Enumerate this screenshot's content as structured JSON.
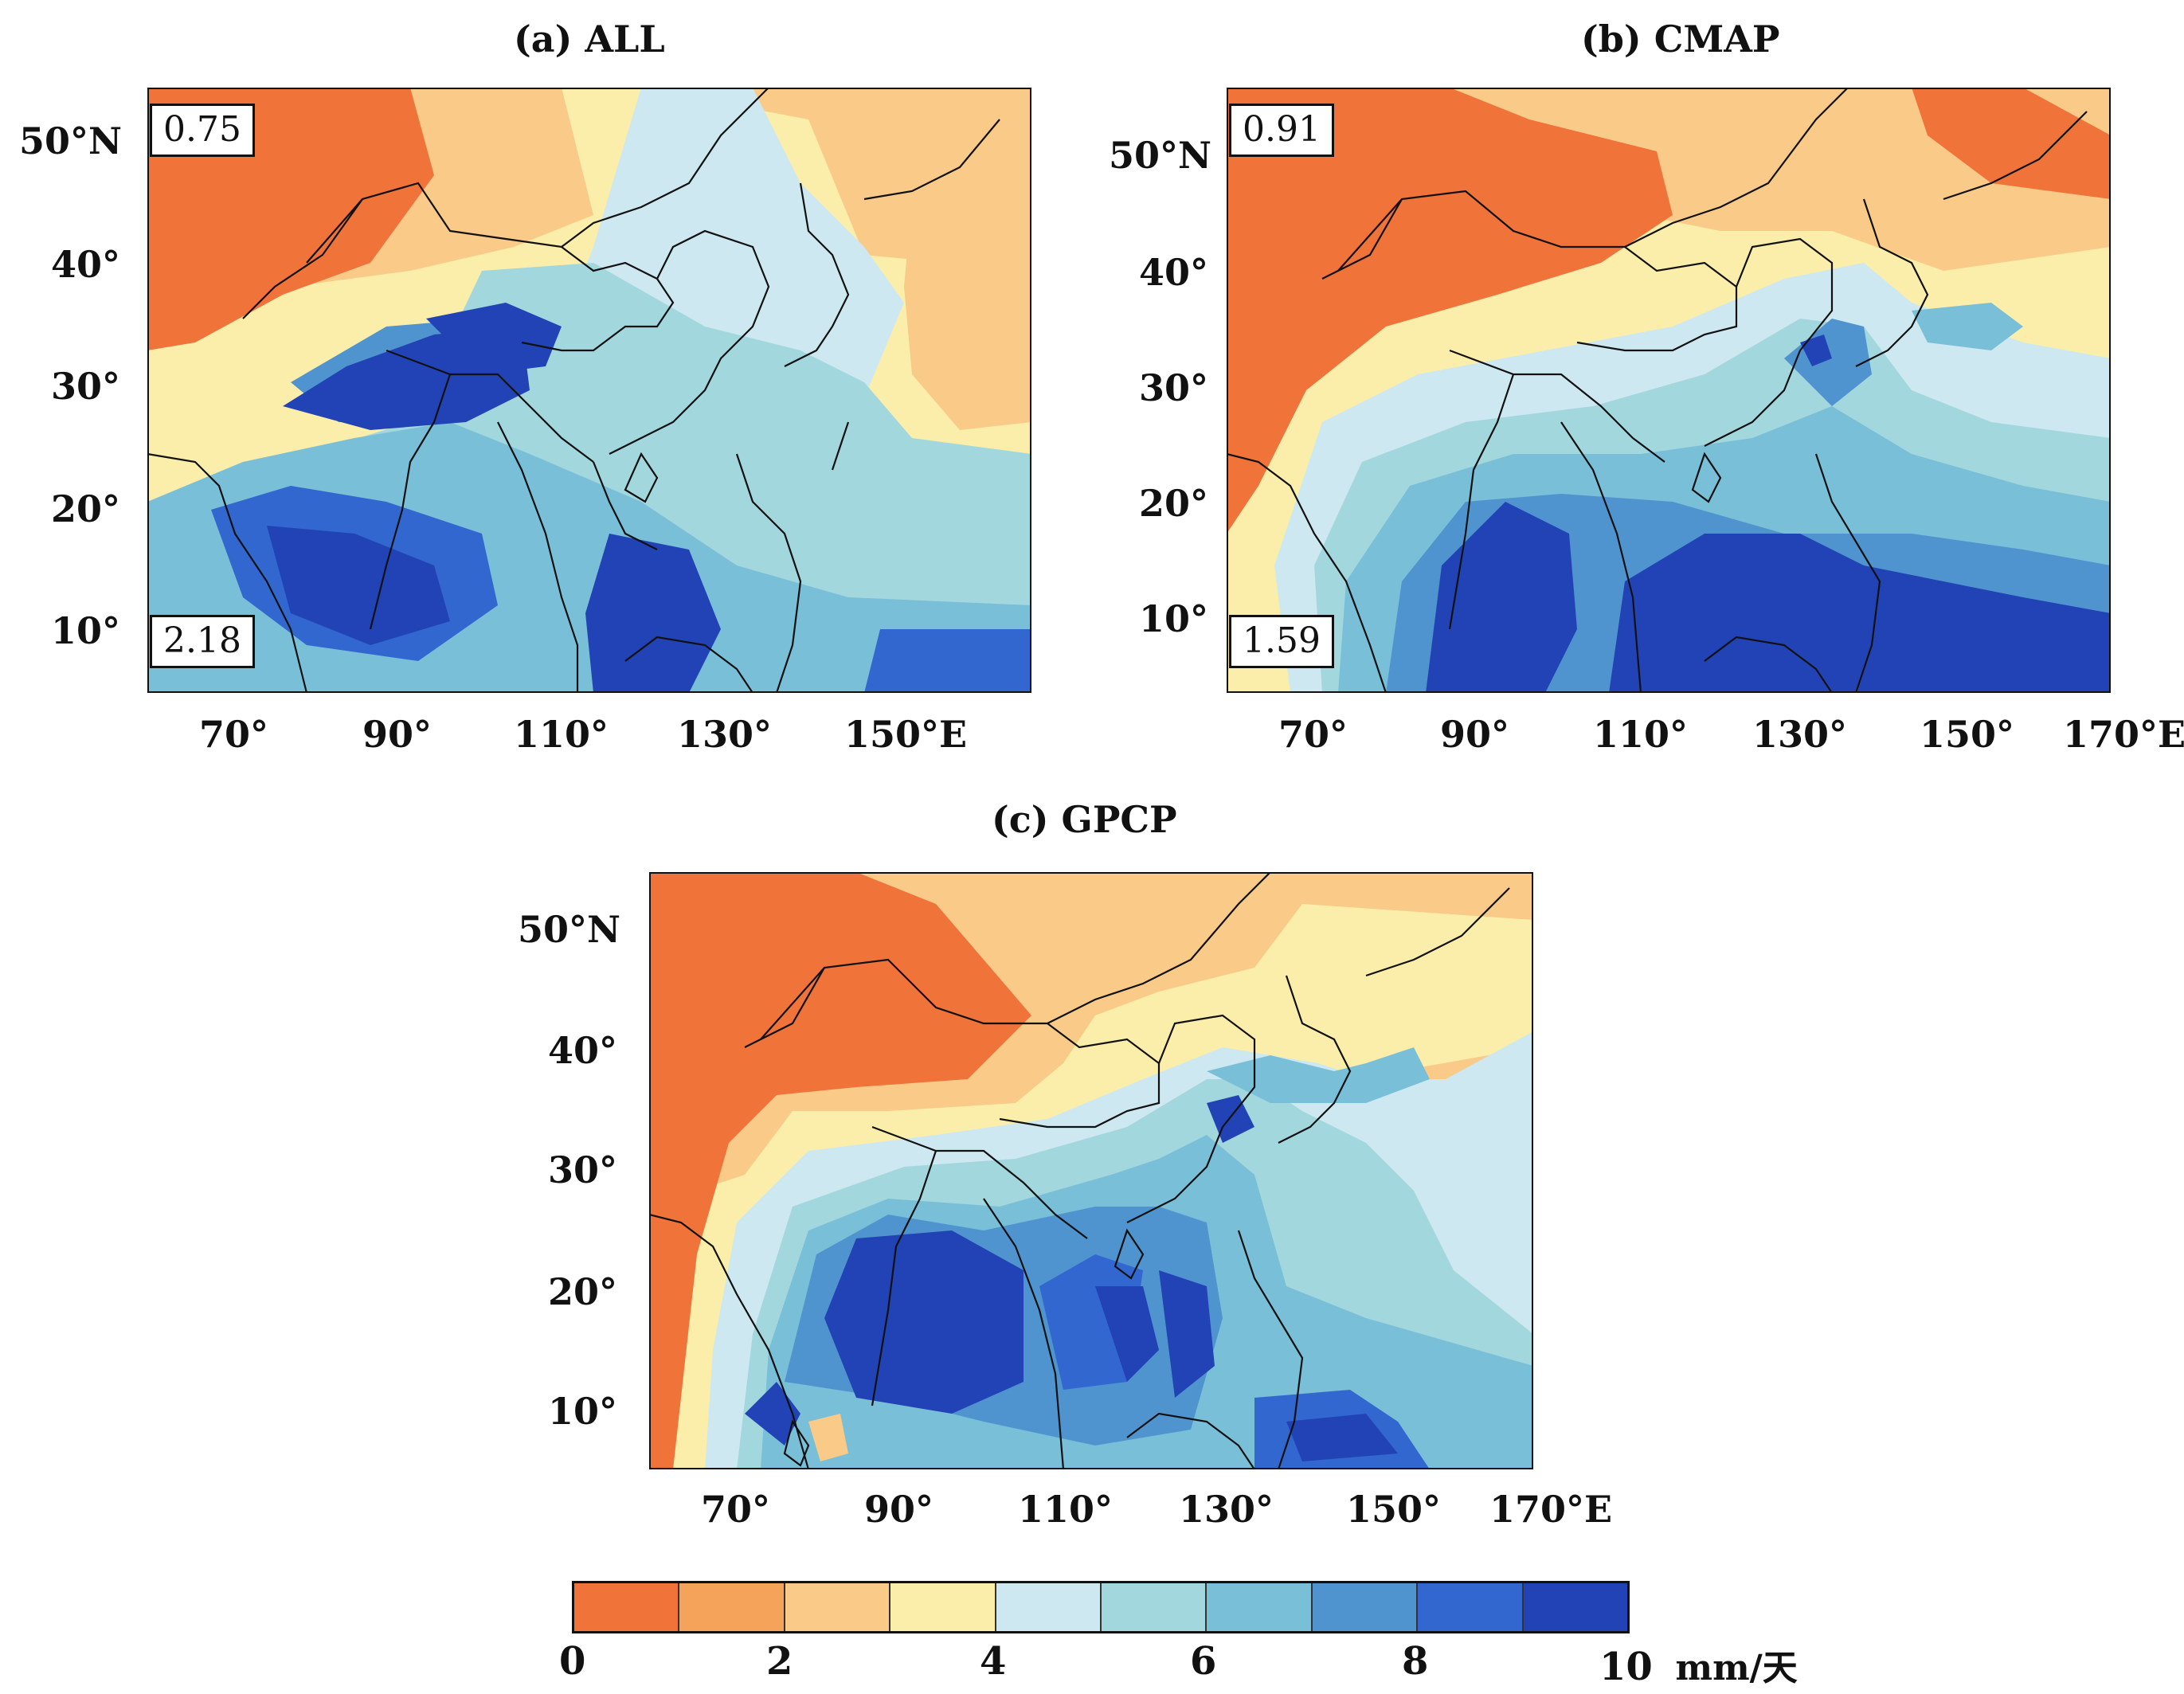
{
  "panels": [
    {
      "id": "a",
      "title": "(a) ALL",
      "stat_top": "0.75",
      "stat_bottom": "2.18",
      "lat_labels": [
        "50°N",
        "40°",
        "30°",
        "20°",
        "10°"
      ],
      "lon_labels": [
        "70°",
        "90°",
        "110°",
        "130°",
        "150°E"
      ]
    },
    {
      "id": "b",
      "title": "(b) CMAP",
      "stat_top": "0.91",
      "stat_bottom": "1.59",
      "lat_labels": [
        "50°N",
        "40°",
        "30°",
        "20°",
        "10°"
      ],
      "lon_labels": [
        "70°",
        "90°",
        "110°",
        "130°",
        "150°",
        "170°E"
      ]
    },
    {
      "id": "c",
      "title": "(c) GPCP",
      "lat_labels": [
        "50°N",
        "40°",
        "30°",
        "20°",
        "10°"
      ],
      "lon_labels": [
        "70°",
        "90°",
        "110°",
        "130°",
        "150°",
        "170°E"
      ]
    }
  ],
  "colorbar": {
    "tick_labels": [
      "0",
      "2",
      "4",
      "6",
      "8",
      "10"
    ],
    "unit": "mm/天",
    "colors": [
      "#f0733a",
      "#f5a25a",
      "#f9ca88",
      "#fbeeaa",
      "#cde8f0",
      "#a3d7de",
      "#79bfd8",
      "#4f94cf",
      "#3167cf",
      "#2243b5"
    ]
  }
}
